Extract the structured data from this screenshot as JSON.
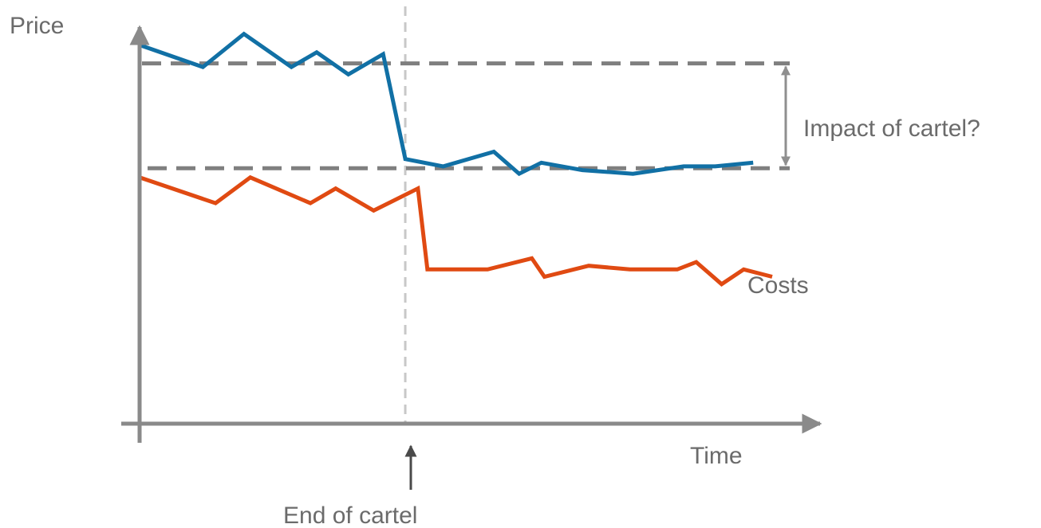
{
  "chart_data": {
    "type": "line",
    "xlabel": "Time",
    "ylabel": "Price",
    "xlim": [
      0,
      100
    ],
    "ylim": [
      0,
      100
    ],
    "grid": false,
    "series": [
      {
        "color": "#1170a5",
        "x": [
          0,
          10,
          16.5,
          24,
          28,
          33,
          38.5,
          42,
          48,
          56,
          60,
          63.5,
          70,
          78,
          86,
          91,
          97
        ],
        "y": [
          96,
          90,
          99,
          90,
          94,
          88,
          93.5,
          65,
          63,
          67,
          61,
          64,
          62,
          61,
          63,
          63,
          64
        ]
      },
      {
        "name": "Costs",
        "color": "#e04a12",
        "x": [
          0,
          12,
          17.5,
          27,
          31,
          37,
          44,
          45.5,
          55,
          62,
          64,
          71,
          77.5,
          85,
          88,
          92,
          95.5,
          100
        ],
        "y": [
          60,
          53,
          60,
          53,
          57,
          51,
          57,
          35,
          35,
          38,
          33,
          36,
          35,
          35,
          37,
          31,
          35,
          33
        ]
      }
    ],
    "reference_lines": {
      "pre_cartel_end_level": 91,
      "post_cartel_end_level": 62.5,
      "end_of_cartel_x": 42
    },
    "annotations": {
      "impact": "Impact of cartel?",
      "end_of_cartel": "End of cartel"
    },
    "colors": {
      "axis": "#8a8a8a",
      "dashed": "#7f7f7f",
      "end_line": "#c8c8c8",
      "arrow": "#8f8f8f",
      "end_arrow": "#4a4a4a",
      "text": "#6b6b6b"
    }
  }
}
